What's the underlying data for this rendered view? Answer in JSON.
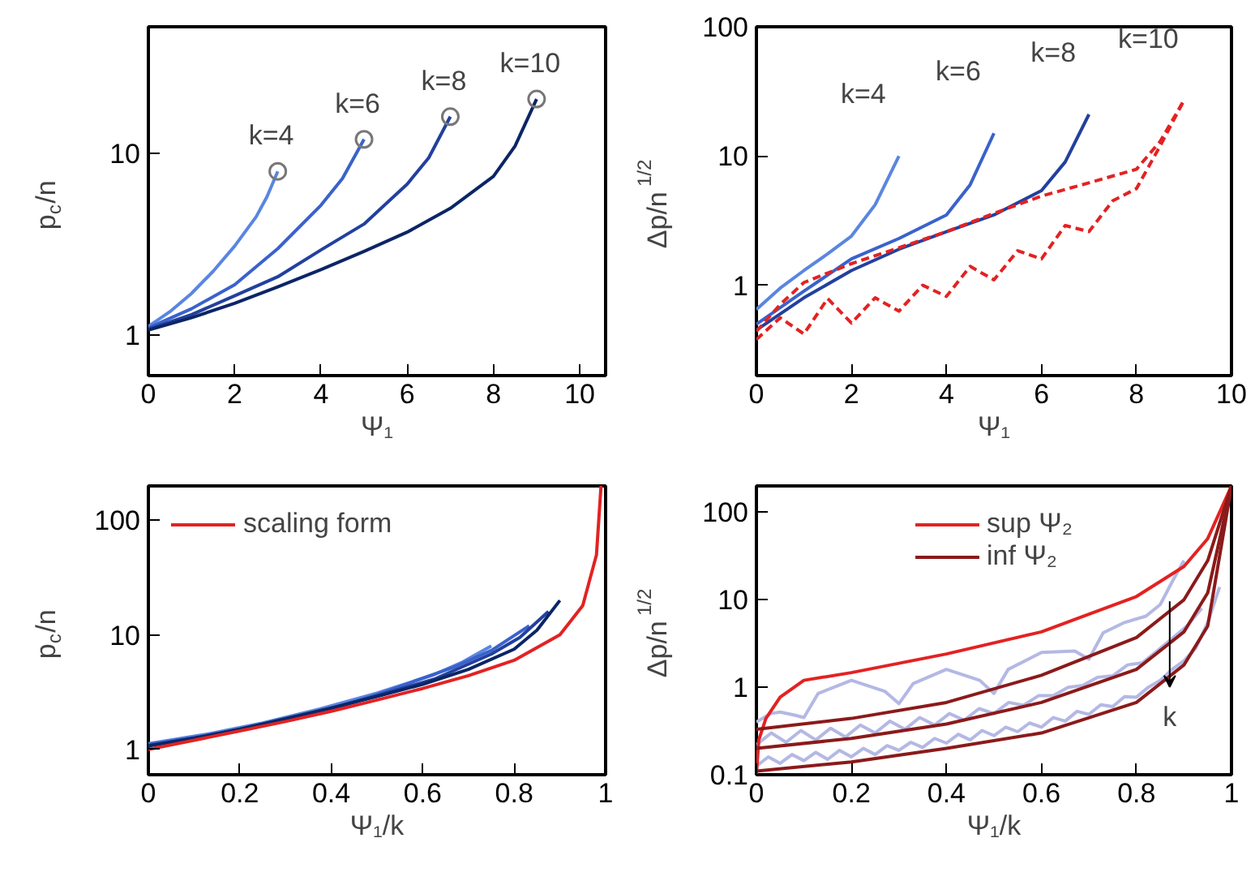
{
  "chart_data": [
    {
      "type": "line",
      "xlabel": "Ψ₁",
      "ylabel": "p$_{c}$/n",
      "log": "y",
      "xlim": [
        0,
        10.6
      ],
      "ylim": [
        0.6,
        50
      ],
      "xticks": [
        0,
        2,
        4,
        6,
        8,
        10
      ],
      "yticks": [
        1,
        10
      ],
      "series": [
        {
          "color": "#5a86e0",
          "x": [
            0,
            0.5,
            1,
            1.5,
            2,
            2.5,
            2.75,
            3
          ],
          "values": [
            1.12,
            1.35,
            1.7,
            2.25,
            3.1,
            4.5,
            5.8,
            8
          ]
        },
        {
          "color": "#3a62cc",
          "x": [
            0,
            1,
            2,
            3,
            4,
            4.5,
            5
          ],
          "values": [
            1.1,
            1.4,
            1.9,
            3.0,
            5.2,
            7.3,
            12
          ]
        },
        {
          "color": "#22409e",
          "x": [
            0,
            1,
            2,
            3,
            4,
            5,
            6,
            6.5,
            7
          ],
          "values": [
            1.08,
            1.3,
            1.65,
            2.1,
            2.95,
            4.1,
            6.8,
            9.5,
            16
          ]
        },
        {
          "color": "#0b2566",
          "x": [
            0,
            1,
            2,
            3,
            4,
            5,
            6,
            7,
            8,
            8.5,
            9
          ],
          "values": [
            1.07,
            1.25,
            1.5,
            1.85,
            2.3,
            2.9,
            3.7,
            5.0,
            7.5,
            11,
            20
          ]
        },
        {
          "type": "scatter",
          "marker": "circle",
          "color": "#777777",
          "x": [
            3,
            5,
            7,
            9
          ],
          "values": [
            8,
            12,
            16,
            20
          ]
        }
      ],
      "annotations": [
        "k=4",
        "k=6",
        "k=8",
        "k=10"
      ]
    },
    {
      "type": "line",
      "xlabel": "Ψ₁",
      "ylabel": "Δp/n$^{1/2}$",
      "log": "y",
      "xlim": [
        0,
        10
      ],
      "ylim": [
        0.2,
        100
      ],
      "xticks": [
        0,
        2,
        4,
        6,
        8,
        10
      ],
      "yticks": [
        1,
        10,
        100
      ],
      "series": [
        {
          "color": "#5a86e0",
          "x": [
            0,
            0.5,
            1,
            1.5,
            2,
            2.5,
            3
          ],
          "values": [
            0.65,
            0.95,
            1.3,
            1.75,
            2.4,
            4.2,
            10
          ]
        },
        {
          "color": "#3a62cc",
          "x": [
            0,
            1,
            2,
            3,
            4,
            4.5,
            5
          ],
          "values": [
            0.5,
            0.9,
            1.6,
            2.3,
            3.5,
            6,
            15
          ]
        },
        {
          "color": "#22409e",
          "x": [
            0,
            1,
            2,
            3,
            4,
            5,
            6,
            6.5,
            7
          ],
          "values": [
            0.45,
            0.8,
            1.3,
            1.9,
            2.6,
            3.5,
            5.4,
            9,
            21
          ]
        },
        {
          "color": "#e32222",
          "line_style": "dashed",
          "x": [
            0,
            0.5,
            1,
            2,
            3,
            4,
            5,
            6,
            7,
            8,
            8.5,
            9
          ],
          "values": [
            0.44,
            0.71,
            1.05,
            1.47,
            1.95,
            2.6,
            3.6,
            4.9,
            6.2,
            7.9,
            13,
            27
          ]
        },
        {
          "color": "#e32222",
          "line_style": "dashed",
          "x": [
            0,
            0.5,
            1,
            1.5,
            2,
            2.5,
            3,
            3.5,
            4,
            4.5,
            5,
            5.5,
            6,
            6.5,
            7,
            7.5,
            8,
            8.5,
            9
          ],
          "values": [
            0.38,
            0.56,
            0.42,
            0.79,
            0.51,
            0.8,
            0.63,
            1.0,
            0.82,
            1.4,
            1.1,
            1.85,
            1.6,
            2.9,
            2.6,
            4.5,
            5.6,
            12,
            27
          ]
        }
      ],
      "annotations": [
        "k=4",
        "k=6",
        "k=8",
        "k=10"
      ]
    },
    {
      "type": "line",
      "xlabel": "Ψ₁/k",
      "ylabel": "p$_{c}$/n",
      "log": "y",
      "xlim": [
        0,
        1
      ],
      "ylim": [
        0.6,
        200
      ],
      "xticks": [
        0,
        0.2,
        0.4,
        0.6,
        0.8,
        1
      ],
      "yticks": [
        1,
        10,
        100
      ],
      "legend": "top left",
      "series": [
        {
          "color": "#5a86e0",
          "x": [
            0,
            0.125,
            0.25,
            0.375,
            0.5,
            0.625,
            0.6875,
            0.75
          ],
          "values": [
            1.12,
            1.35,
            1.7,
            2.25,
            3.1,
            4.5,
            5.8,
            8
          ]
        },
        {
          "color": "#3a62cc",
          "x": [
            0,
            0.167,
            0.333,
            0.5,
            0.667,
            0.75,
            0.833
          ],
          "values": [
            1.1,
            1.4,
            1.9,
            3.0,
            5.2,
            7.3,
            12
          ]
        },
        {
          "color": "#22409e",
          "x": [
            0,
            0.125,
            0.25,
            0.375,
            0.5,
            0.625,
            0.75,
            0.8125,
            0.875
          ],
          "values": [
            1.08,
            1.3,
            1.65,
            2.1,
            2.95,
            4.1,
            6.8,
            9.5,
            16
          ]
        },
        {
          "color": "#0b2566",
          "x": [
            0,
            0.1,
            0.2,
            0.3,
            0.4,
            0.5,
            0.6,
            0.7,
            0.8,
            0.85,
            0.9
          ],
          "values": [
            1.07,
            1.25,
            1.5,
            1.85,
            2.3,
            2.9,
            3.7,
            5.0,
            7.5,
            11,
            20
          ]
        },
        {
          "name": "scaling form",
          "color": "#e32222",
          "x": [
            0,
            0.1,
            0.2,
            0.3,
            0.4,
            0.5,
            0.6,
            0.7,
            0.8,
            0.9,
            0.95,
            0.98,
            0.99
          ],
          "values": [
            1.0,
            1.2,
            1.45,
            1.75,
            2.15,
            2.7,
            3.4,
            4.4,
            6.0,
            10,
            18,
            50,
            200
          ]
        }
      ]
    },
    {
      "type": "line",
      "xlabel": "Ψ₁/k",
      "ylabel": "Δp/n$^{1/2}$",
      "log": "y",
      "xlim": [
        0,
        1
      ],
      "ylim": [
        0.1,
        200
      ],
      "xticks": [
        0,
        0.2,
        0.4,
        0.6,
        0.8,
        1
      ],
      "yticks": [
        0.1,
        1,
        10,
        100
      ],
      "legend": "top",
      "series": [
        {
          "color": "#b4b8e4",
          "x": [
            0,
            0.025,
            0.05,
            0.075,
            0.1,
            0.125,
            0.15,
            0.175,
            0.2,
            0.225,
            0.25,
            0.275,
            0.3,
            0.325,
            0.35,
            0.375,
            0.4,
            0.425,
            0.45,
            0.475,
            0.5,
            0.525,
            0.55,
            0.575,
            0.6,
            0.625,
            0.65,
            0.675,
            0.7,
            0.725,
            0.75,
            0.775,
            0.8,
            0.825,
            0.85,
            0.875,
            0.9,
            0.925,
            0.95,
            0.975
          ],
          "values": [
            0.125,
            0.16,
            0.135,
            0.17,
            0.145,
            0.18,
            0.15,
            0.19,
            0.16,
            0.2,
            0.17,
            0.215,
            0.19,
            0.235,
            0.205,
            0.26,
            0.23,
            0.29,
            0.25,
            0.32,
            0.28,
            0.35,
            0.31,
            0.39,
            0.35,
            0.45,
            0.41,
            0.53,
            0.49,
            0.63,
            0.6,
            0.78,
            0.77,
            1.0,
            1.2,
            1.6,
            2.0,
            2.8,
            5.5,
            14
          ]
        },
        {
          "color": "#b4b8e4",
          "x": [
            0,
            0.03125,
            0.0625,
            0.09375,
            0.125,
            0.15625,
            0.1875,
            0.21875,
            0.25,
            0.28125,
            0.3125,
            0.34375,
            0.375,
            0.40625,
            0.4375,
            0.46875,
            0.5,
            0.53125,
            0.5625,
            0.59375,
            0.625,
            0.65625,
            0.6875,
            0.71875,
            0.75,
            0.78125,
            0.8125,
            0.84375,
            0.875,
            0.90625,
            0.9375
          ],
          "values": [
            0.22,
            0.3,
            0.235,
            0.32,
            0.25,
            0.34,
            0.27,
            0.37,
            0.3,
            0.41,
            0.33,
            0.45,
            0.37,
            0.5,
            0.42,
            0.57,
            0.5,
            0.67,
            0.62,
            0.8,
            0.8,
            1.0,
            1.05,
            1.3,
            1.35,
            1.8,
            1.9,
            2.6,
            3.6,
            5,
            8
          ]
        },
        {
          "color": "#b4b8e4",
          "x": [
            0,
            0.03,
            0.05,
            0.08,
            0.1,
            0.13,
            0.2,
            0.27,
            0.3,
            0.33,
            0.4,
            0.47,
            0.5,
            0.53,
            0.6,
            0.67,
            0.7,
            0.73,
            0.775,
            0.82,
            0.85,
            0.875,
            0.9
          ],
          "values": [
            0.4,
            0.5,
            0.52,
            0.48,
            0.45,
            0.85,
            1.2,
            0.9,
            0.65,
            1.1,
            1.6,
            1.2,
            0.85,
            1.6,
            2.5,
            2.6,
            2.1,
            4.2,
            5.5,
            6.5,
            8.8,
            16,
            28
          ]
        },
        {
          "name": "sup Ψ₂",
          "color": "#e32222",
          "x": [
            0,
            0.005,
            0.02,
            0.05,
            0.1,
            0.2,
            0.4,
            0.6,
            0.8,
            0.9,
            0.95,
            1.0
          ],
          "values": [
            0.1,
            0.25,
            0.44,
            0.77,
            1.2,
            1.47,
            2.4,
            4.3,
            10.9,
            24,
            50,
            200
          ]
        },
        {
          "name": "inf Ψ₂",
          "color": "#8b1a1a",
          "x": [
            0,
            0.2,
            0.4,
            0.6,
            0.8,
            0.9,
            0.95,
            1.0
          ],
          "values": [
            0.33,
            0.44,
            0.67,
            1.37,
            3.7,
            10,
            28,
            200
          ]
        },
        {
          "color": "#8b1a1a",
          "x": [
            0,
            0.2,
            0.4,
            0.6,
            0.8,
            0.9,
            0.95,
            1.0
          ],
          "values": [
            0.2,
            0.26,
            0.38,
            0.67,
            1.6,
            4.3,
            12,
            200
          ]
        },
        {
          "color": "#8b1a1a",
          "x": [
            0,
            0.2,
            0.4,
            0.6,
            0.8,
            0.9,
            0.95,
            1.0
          ],
          "values": [
            0.11,
            0.14,
            0.2,
            0.3,
            0.67,
            1.8,
            5,
            200
          ]
        }
      ],
      "annotations": [
        "k"
      ]
    }
  ]
}
